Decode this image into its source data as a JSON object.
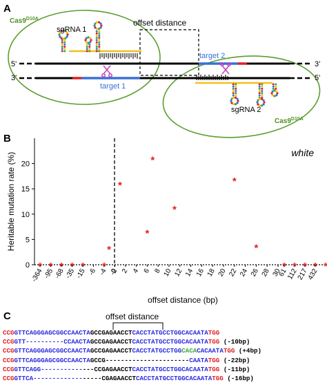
{
  "panels": {
    "a": "A",
    "b": "B",
    "c": "C"
  },
  "panel_a": {
    "offset_label": "offset distance",
    "cas9_left": "Cas9",
    "cas9_left_sup": "D10A",
    "cas9_right": "Cas9",
    "cas9_right_sup": "D10A",
    "sgrna1": "sgRNA 1",
    "sgrna2": "sgRNA 2",
    "target1": "target 1",
    "target2": "target 2",
    "five_prime": "5'",
    "three_prime": "3'",
    "colors": {
      "target": "#3a6fd8",
      "pam": "#e02020",
      "scissors": "#c040c0",
      "cas9_outline": "#5a9e2f",
      "cas9_text": "#4f8f22"
    }
  },
  "chart_data": {
    "type": "scatter",
    "title": "",
    "annotation": "white",
    "xlabel": "offset distance (bp)",
    "ylabel": "Heritable mutation rate (%)",
    "x_tick_labels": [
      "-364",
      "-95",
      "-68",
      "-35",
      "-15",
      "-6",
      "-4",
      "-2",
      "0",
      "2",
      "4",
      "6",
      "8",
      "10",
      "12",
      "14",
      "16",
      "18",
      "20",
      "22",
      "24",
      "26",
      "28",
      "30",
      "61",
      "112",
      "217",
      "432"
    ],
    "y_ticks": [
      0,
      5,
      10,
      15,
      20
    ],
    "ylim": [
      0,
      25
    ],
    "grid": false,
    "marker_color": "#e02020",
    "points": [
      {
        "x": "-364",
        "y": 0
      },
      {
        "x": "-95",
        "y": 0
      },
      {
        "x": "-68",
        "y": 0
      },
      {
        "x": "-35",
        "y": 0
      },
      {
        "x": "-15",
        "y": 0
      },
      {
        "x": "-4",
        "y": 0
      },
      {
        "x": "-1",
        "y": 3.3
      },
      {
        "x": "1",
        "y": 16
      },
      {
        "x": "6",
        "y": 6.5
      },
      {
        "x": "7",
        "y": 21
      },
      {
        "x": "11",
        "y": 11.2
      },
      {
        "x": "22",
        "y": 16.8
      },
      {
        "x": "26",
        "y": 3.6
      },
      {
        "x": "61",
        "y": 0
      },
      {
        "x": "112",
        "y": 0
      },
      {
        "x": "217",
        "y": 0
      },
      {
        "x": "432",
        "y": 0
      },
      {
        "x": "432b",
        "y": 0
      }
    ]
  },
  "panel_c": {
    "offset_label": "offset distance",
    "sequences": [
      {
        "segments": [
          {
            "t": "CCG",
            "c": "#e02020"
          },
          {
            "t": "GTTCAGGGAGCGGCCAACTA",
            "c": "#2a2ae0"
          },
          {
            "t": "GCCGAGAACCT",
            "c": "#000000"
          },
          {
            "t": "CACCTATGCCTGGCACAATA",
            "c": "#2a2ae0"
          },
          {
            "t": "TGG",
            "c": "#e02020"
          }
        ],
        "note": ""
      },
      {
        "segments": [
          {
            "t": "CCG",
            "c": "#e02020"
          },
          {
            "t": "GTT----------CCAACTA",
            "c": "#2a2ae0"
          },
          {
            "t": "GCCGAGAACCT",
            "c": "#000000"
          },
          {
            "t": "CACCTATGCCTGGCACAATA",
            "c": "#2a2ae0"
          },
          {
            "t": "TGG",
            "c": "#e02020"
          }
        ],
        "note": "(-10bp)"
      },
      {
        "segments": [
          {
            "t": "CCG",
            "c": "#e02020"
          },
          {
            "t": "GTTCAGGGAGCGGCCAACTA",
            "c": "#2a2ae0"
          },
          {
            "t": "GCCGAGAACCT",
            "c": "#000000"
          },
          {
            "t": "CACCTATGCCTGG",
            "c": "#2a2ae0"
          },
          {
            "t": "CACA",
            "c": "#3aa63a"
          },
          {
            "t": "CACAATA",
            "c": "#2a2ae0"
          },
          {
            "t": "TGG",
            "c": "#e02020"
          }
        ],
        "note": "(+4bp)"
      },
      {
        "segments": [
          {
            "t": "CCG",
            "c": "#e02020"
          },
          {
            "t": "GTTCAGGGAGCGGCCAACTA",
            "c": "#2a2ae0"
          },
          {
            "t": "GCCG----------------------",
            "c": "#000000"
          },
          {
            "t": "CAATA",
            "c": "#2a2ae0"
          },
          {
            "t": "TGG",
            "c": "#e02020"
          }
        ],
        "note": "(-22bp)"
      },
      {
        "segments": [
          {
            "t": "CCG",
            "c": "#e02020"
          },
          {
            "t": "GTTCAGG-----------",
            "c": "#2a2ae0"
          },
          {
            "t": "---CCGAGAACCT",
            "c": "#000000"
          },
          {
            "t": "CACCTATGCCTGGCACAATA",
            "c": "#2a2ae0"
          },
          {
            "t": "TGG",
            "c": "#e02020"
          }
        ],
        "note": "(-11bp)"
      },
      {
        "segments": [
          {
            "t": "CCG",
            "c": "#e02020"
          },
          {
            "t": "GTTCA-------------",
            "c": "#2a2ae0"
          },
          {
            "t": "-----CGAGAACCT",
            "c": "#000000"
          },
          {
            "t": "CACCTATGCCTGGCACAATA",
            "c": "#2a2ae0"
          },
          {
            "t": "TGG",
            "c": "#e02020"
          }
        ],
        "note": "(-16bp)"
      }
    ]
  }
}
